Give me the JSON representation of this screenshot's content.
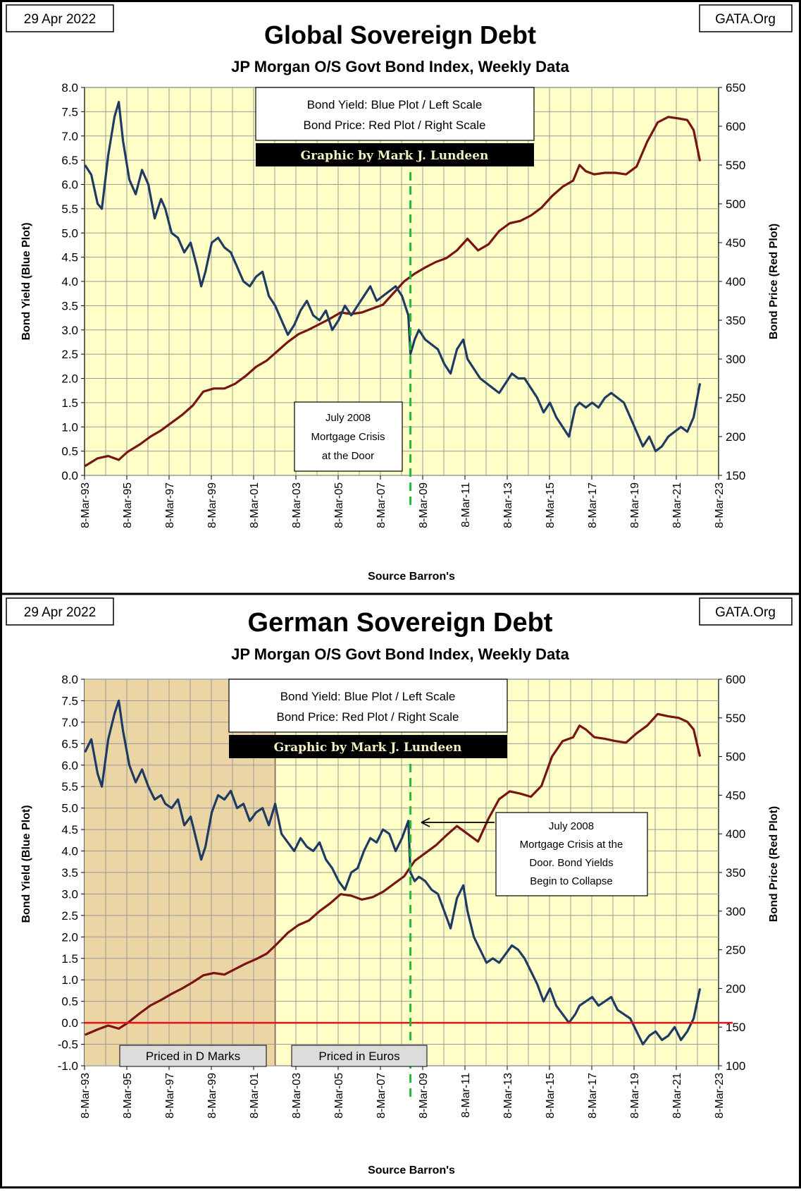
{
  "chart_data": [
    {
      "type": "line",
      "title": "Global Sovereign Debt",
      "subtitle": "JP Morgan O/S Govt Bond Index, Weekly Data",
      "date_label": "29 Apr 2022",
      "site_label": "GATA.Org",
      "source": "Source Barron's",
      "ylabel_left": "Bond Yield  (Blue Plot)",
      "ylabel_right": "Bond  Price   (Red Plot)",
      "ylim_left": [
        0,
        8
      ],
      "ylim_right": [
        150,
        650
      ],
      "left_ticks": [
        "0.0",
        "0.5",
        "1.0",
        "1.5",
        "2.0",
        "2.5",
        "3.0",
        "3.5",
        "4.0",
        "4.5",
        "5.0",
        "5.5",
        "6.0",
        "6.5",
        "7.0",
        "7.5",
        "8.0"
      ],
      "right_ticks": [
        "150",
        "200",
        "250",
        "300",
        "350",
        "400",
        "450",
        "500",
        "550",
        "600",
        "650"
      ],
      "x_ticks": [
        "8-Mar-93",
        "8-Mar-95",
        "8-Mar-97",
        "8-Mar-99",
        "8-Mar-01",
        "8-Mar-03",
        "8-Mar-05",
        "8-Mar-07",
        "8-Mar-09",
        "8-Mar-11",
        "8-Mar-13",
        "8-Mar-15",
        "8-Mar-17",
        "8-Mar-19",
        "8-Mar-21",
        "8-Mar-23"
      ],
      "xlim": [
        1993.18,
        2023.18
      ],
      "legend_line1": "Bond Yield: Blue Plot / Left Scale",
      "legend_line2": "Bond Price: Red Plot / Right Scale",
      "credit": "Graphic by Mark J. Lundeen",
      "marker_year": 2008.6,
      "annotation": [
        "July 2008",
        "Mortgage Crisis",
        "at the Door"
      ],
      "series": [
        {
          "name": "Bond Yield",
          "axis": "left",
          "color": "#1f3b63",
          "x": [
            1993.2,
            1993.5,
            1993.8,
            1994.0,
            1994.3,
            1994.6,
            1994.8,
            1995.0,
            1995.3,
            1995.6,
            1995.9,
            1996.2,
            1996.5,
            1996.8,
            1997.0,
            1997.3,
            1997.6,
            1997.9,
            1998.2,
            1998.5,
            1998.7,
            1998.9,
            1999.2,
            1999.5,
            1999.8,
            2000.1,
            2000.4,
            2000.7,
            2001.0,
            2001.3,
            2001.6,
            2001.9,
            2002.2,
            2002.5,
            2002.8,
            2003.1,
            2003.4,
            2003.7,
            2004.0,
            2004.3,
            2004.6,
            2004.9,
            2005.2,
            2005.5,
            2005.8,
            2006.1,
            2006.4,
            2006.7,
            2007.0,
            2007.3,
            2007.6,
            2007.9,
            2008.2,
            2008.5,
            2008.6,
            2008.8,
            2009.0,
            2009.3,
            2009.6,
            2009.9,
            2010.2,
            2010.5,
            2010.8,
            2011.1,
            2011.3,
            2011.6,
            2011.9,
            2012.2,
            2012.5,
            2012.8,
            2013.1,
            2013.4,
            2013.7,
            2014.0,
            2014.3,
            2014.6,
            2014.9,
            2015.2,
            2015.5,
            2015.8,
            2016.1,
            2016.4,
            2016.6,
            2016.9,
            2017.2,
            2017.5,
            2017.8,
            2018.1,
            2018.4,
            2018.7,
            2019.0,
            2019.3,
            2019.6,
            2019.9,
            2020.2,
            2020.5,
            2020.8,
            2021.1,
            2021.4,
            2021.7,
            2022.0,
            2022.3
          ],
          "values": [
            6.4,
            6.2,
            5.6,
            5.5,
            6.6,
            7.4,
            7.7,
            6.9,
            6.1,
            5.8,
            6.3,
            6.0,
            5.3,
            5.7,
            5.5,
            5.0,
            4.9,
            4.6,
            4.8,
            4.3,
            3.9,
            4.2,
            4.8,
            4.9,
            4.7,
            4.6,
            4.3,
            4.0,
            3.9,
            4.1,
            4.2,
            3.7,
            3.5,
            3.2,
            2.9,
            3.1,
            3.4,
            3.6,
            3.3,
            3.2,
            3.4,
            3.0,
            3.2,
            3.5,
            3.3,
            3.5,
            3.7,
            3.9,
            3.6,
            3.7,
            3.8,
            3.9,
            3.7,
            3.3,
            2.5,
            2.8,
            3.0,
            2.8,
            2.7,
            2.6,
            2.3,
            2.1,
            2.6,
            2.8,
            2.4,
            2.2,
            2.0,
            1.9,
            1.8,
            1.7,
            1.9,
            2.1,
            2.0,
            2.0,
            1.8,
            1.6,
            1.3,
            1.5,
            1.2,
            1.0,
            0.8,
            1.4,
            1.5,
            1.4,
            1.5,
            1.4,
            1.6,
            1.7,
            1.6,
            1.5,
            1.2,
            0.9,
            0.6,
            0.8,
            0.5,
            0.6,
            0.8,
            0.9,
            1.0,
            0.9,
            1.2,
            1.9
          ]
        },
        {
          "name": "Bond Price",
          "axis": "right",
          "color": "#7a1414",
          "x": [
            1993.2,
            1993.8,
            1994.3,
            1994.8,
            1995.2,
            1995.8,
            1996.3,
            1996.8,
            1997.3,
            1997.8,
            1998.3,
            1998.8,
            1999.3,
            1999.8,
            2000.3,
            2000.8,
            2001.3,
            2001.8,
            2002.3,
            2002.8,
            2003.3,
            2003.8,
            2004.3,
            2004.8,
            2005.3,
            2005.8,
            2006.3,
            2006.8,
            2007.3,
            2007.8,
            2008.3,
            2008.8,
            2009.3,
            2009.8,
            2010.3,
            2010.8,
            2011.3,
            2011.8,
            2012.3,
            2012.8,
            2013.3,
            2013.8,
            2014.3,
            2014.8,
            2015.3,
            2015.8,
            2016.3,
            2016.6,
            2016.9,
            2017.3,
            2017.8,
            2018.3,
            2018.8,
            2019.3,
            2019.8,
            2020.3,
            2020.8,
            2021.3,
            2021.7,
            2022.0,
            2022.3
          ],
          "values": [
            162,
            172,
            175,
            170,
            180,
            190,
            200,
            208,
            218,
            228,
            240,
            258,
            262,
            262,
            268,
            278,
            290,
            298,
            310,
            322,
            332,
            338,
            345,
            352,
            360,
            358,
            360,
            365,
            370,
            385,
            400,
            410,
            418,
            425,
            430,
            440,
            455,
            440,
            448,
            465,
            475,
            478,
            485,
            495,
            510,
            522,
            530,
            550,
            542,
            538,
            540,
            540,
            538,
            548,
            580,
            605,
            612,
            610,
            608,
            595,
            555
          ]
        }
      ]
    },
    {
      "type": "line",
      "title": "German Sovereign Debt",
      "subtitle": "JP Morgan  O/S Govt Bond Index, Weekly Data",
      "date_label": "29 Apr 2022",
      "site_label": "GATA.Org",
      "source": "Source Barron's",
      "ylabel_left": "Bond  Yield  (Blue Plot)",
      "ylabel_right": "Bond  Price   (Red Plot)",
      "ylim_left": [
        -1,
        8
      ],
      "ylim_right": [
        100,
        600
      ],
      "left_ticks": [
        "-1.0",
        "-0.5",
        "0.0",
        "0.5",
        "1.0",
        "1.5",
        "2.0",
        "2.5",
        "3.0",
        "3.5",
        "4.0",
        "4.5",
        "5.0",
        "5.5",
        "6.0",
        "6.5",
        "7.0",
        "7.5",
        "8.0"
      ],
      "right_ticks": [
        "100",
        "150",
        "200",
        "250",
        "300",
        "350",
        "400",
        "450",
        "500",
        "550",
        "600"
      ],
      "x_ticks": [
        "8-Mar-93",
        "8-Mar-95",
        "8-Mar-97",
        "8-Mar-99",
        "8-Mar-01",
        "8-Mar-03",
        "8-Mar-05",
        "8-Mar-07",
        "8-Mar-09",
        "8-Mar-11",
        "8-Mar-13",
        "8-Mar-15",
        "8-Mar-17",
        "8-Mar-19",
        "8-Mar-21",
        "8-Mar-23"
      ],
      "xlim": [
        1993.18,
        2023.18
      ],
      "legend_line1": "Bond Yield: Blue Plot / Left Scale",
      "legend_line2": "Bond Price: Red Plot / Right Scale",
      "credit": "Graphic by Mark J. Lundeen",
      "marker_year": 2008.6,
      "dmark_end_year": 2002.2,
      "zero_line": 0,
      "region_label_dm": "Priced in D Marks",
      "region_label_eur": "Priced in Euros",
      "annotation": [
        "July 2008",
        "Mortgage Crisis  at the",
        "Door.  Bond Yields",
        "Begin to Collapse"
      ],
      "series": [
        {
          "name": "Bond Yield",
          "axis": "left",
          "color": "#1f3b63",
          "x": [
            1993.2,
            1993.5,
            1993.8,
            1994.0,
            1994.3,
            1994.6,
            1994.8,
            1995.0,
            1995.3,
            1995.6,
            1995.9,
            1996.2,
            1996.5,
            1996.8,
            1997.0,
            1997.3,
            1997.6,
            1997.9,
            1998.2,
            1998.5,
            1998.7,
            1998.9,
            1999.2,
            1999.5,
            1999.8,
            2000.1,
            2000.4,
            2000.7,
            2001.0,
            2001.3,
            2001.6,
            2001.9,
            2002.2,
            2002.5,
            2002.8,
            2003.1,
            2003.4,
            2003.7,
            2004.0,
            2004.3,
            2004.6,
            2004.9,
            2005.2,
            2005.5,
            2005.8,
            2006.1,
            2006.4,
            2006.7,
            2007.0,
            2007.3,
            2007.6,
            2007.9,
            2008.2,
            2008.5,
            2008.6,
            2008.8,
            2009.0,
            2009.3,
            2009.6,
            2009.9,
            2010.2,
            2010.5,
            2010.8,
            2011.1,
            2011.3,
            2011.6,
            2011.9,
            2012.2,
            2012.5,
            2012.8,
            2013.1,
            2013.4,
            2013.7,
            2014.0,
            2014.3,
            2014.6,
            2014.9,
            2015.2,
            2015.5,
            2015.8,
            2016.1,
            2016.4,
            2016.6,
            2016.9,
            2017.2,
            2017.5,
            2017.8,
            2018.1,
            2018.4,
            2018.7,
            2019.0,
            2019.3,
            2019.6,
            2019.9,
            2020.2,
            2020.5,
            2020.8,
            2021.1,
            2021.4,
            2021.7,
            2022.0,
            2022.3
          ],
          "values": [
            6.3,
            6.6,
            5.8,
            5.5,
            6.6,
            7.2,
            7.5,
            6.8,
            6.0,
            5.6,
            5.9,
            5.5,
            5.2,
            5.3,
            5.1,
            5.0,
            5.2,
            4.6,
            4.8,
            4.2,
            3.8,
            4.1,
            4.9,
            5.3,
            5.2,
            5.4,
            5.0,
            5.1,
            4.7,
            4.9,
            5.0,
            4.6,
            5.1,
            4.4,
            4.2,
            4.0,
            4.3,
            4.1,
            4.0,
            4.2,
            3.8,
            3.6,
            3.3,
            3.1,
            3.5,
            3.6,
            4.0,
            4.3,
            4.2,
            4.5,
            4.4,
            4.0,
            4.3,
            4.7,
            3.5,
            3.3,
            3.4,
            3.3,
            3.1,
            3.0,
            2.6,
            2.2,
            2.9,
            3.2,
            2.6,
            2.0,
            1.7,
            1.4,
            1.5,
            1.4,
            1.6,
            1.8,
            1.7,
            1.5,
            1.2,
            0.9,
            0.5,
            0.8,
            0.4,
            0.2,
            0.0,
            0.2,
            0.4,
            0.5,
            0.6,
            0.4,
            0.5,
            0.6,
            0.3,
            0.2,
            0.1,
            -0.2,
            -0.5,
            -0.3,
            -0.2,
            -0.4,
            -0.3,
            -0.1,
            -0.4,
            -0.2,
            0.1,
            0.8
          ]
        },
        {
          "name": "Bond Price",
          "axis": "right",
          "color": "#7a1414",
          "x": [
            1993.2,
            1993.8,
            1994.3,
            1994.8,
            1995.2,
            1995.8,
            1996.3,
            1996.8,
            1997.3,
            1997.8,
            1998.3,
            1998.8,
            1999.3,
            1999.8,
            2000.3,
            2000.8,
            2001.3,
            2001.8,
            2002.3,
            2002.8,
            2003.3,
            2003.8,
            2004.3,
            2004.8,
            2005.3,
            2005.8,
            2006.3,
            2006.8,
            2007.3,
            2007.8,
            2008.3,
            2008.8,
            2009.3,
            2009.8,
            2010.3,
            2010.8,
            2011.3,
            2011.8,
            2012.3,
            2012.8,
            2013.3,
            2013.8,
            2014.3,
            2014.8,
            2015.3,
            2015.8,
            2016.3,
            2016.6,
            2016.9,
            2017.3,
            2017.8,
            2018.3,
            2018.8,
            2019.3,
            2019.8,
            2020.3,
            2020.8,
            2021.3,
            2021.7,
            2022.0,
            2022.3
          ],
          "values": [
            140,
            147,
            152,
            148,
            155,
            168,
            178,
            185,
            193,
            200,
            208,
            217,
            220,
            218,
            225,
            232,
            238,
            245,
            258,
            272,
            282,
            288,
            300,
            310,
            322,
            320,
            315,
            318,
            325,
            335,
            345,
            365,
            375,
            385,
            398,
            410,
            400,
            390,
            420,
            445,
            455,
            452,
            448,
            462,
            500,
            520,
            525,
            540,
            535,
            525,
            523,
            520,
            518,
            530,
            540,
            555,
            552,
            550,
            545,
            535,
            500
          ]
        }
      ]
    }
  ]
}
